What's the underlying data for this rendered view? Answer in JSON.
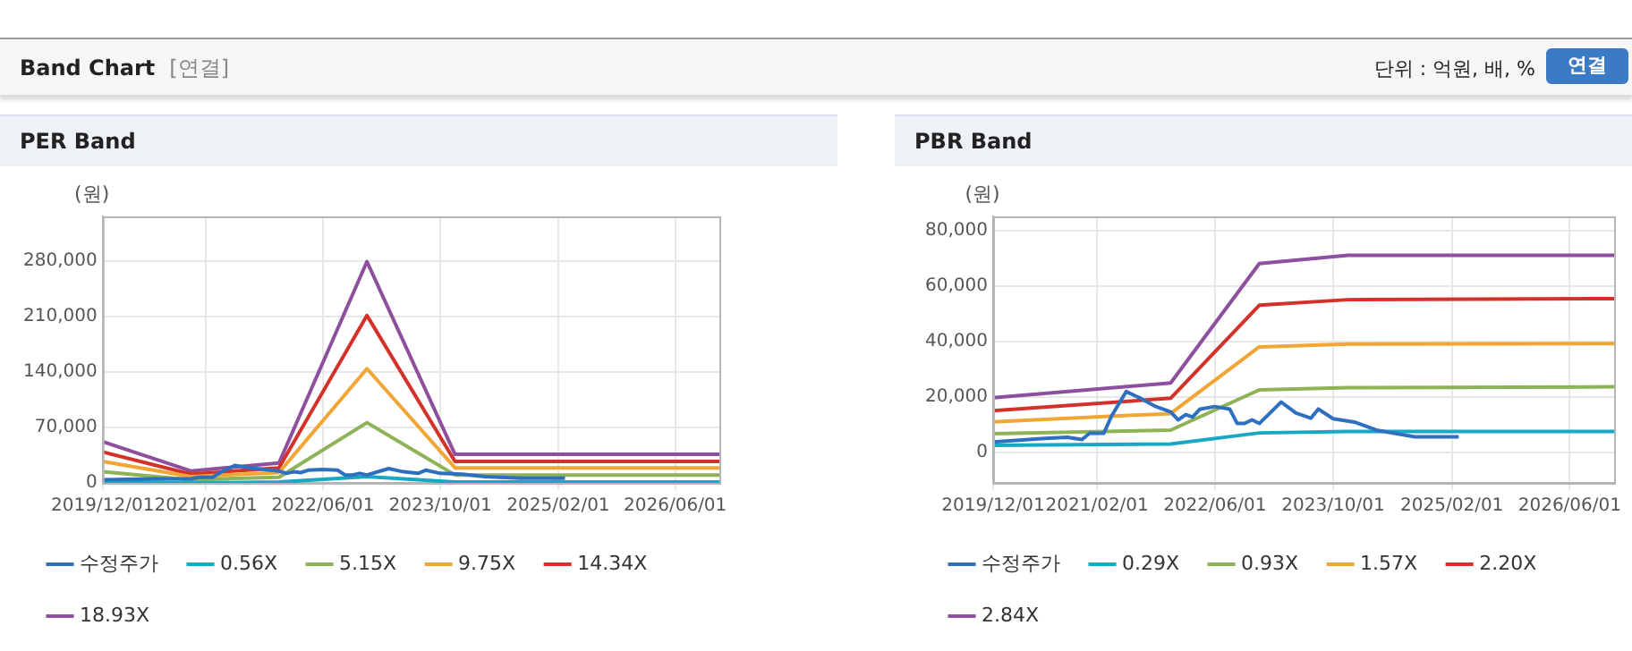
{
  "chart_data": [
    {
      "type": "other",
      "title": "Band Chart",
      "annotations": [
        "[연결]",
        "단위 : 억원, 배, %",
        "연결"
      ]
    },
    {
      "type": "line",
      "title": "PER Band",
      "ylabel": "(원)",
      "grid": true,
      "legend": "bottom",
      "marker": "none",
      "line_style": "solid",
      "xlim": [
        "2019-12-01",
        "2026-12-01"
      ],
      "xticks": [
        {
          "value": "2019-12-01",
          "label": "2019/12/01"
        },
        {
          "value": "2021-02-01",
          "label": "2021/02/01"
        },
        {
          "value": "2022-06-01",
          "label": "2022/06/01"
        },
        {
          "value": "2023-10-01",
          "label": "2023/10/01"
        },
        {
          "value": "2025-02-01",
          "label": "2025/02/01"
        },
        {
          "value": "2026-06-01",
          "label": "2026/06/01"
        }
      ],
      "ylim": [
        0,
        336000
      ],
      "yticks": [
        0,
        {
          "value": 70000,
          "label": "70,000"
        },
        {
          "value": 140000,
          "label": "140,000"
        },
        {
          "value": 210000,
          "label": "210,000"
        },
        {
          "value": 280000,
          "label": "280,000"
        }
      ],
      "series": [
        {
          "name": "수정주가",
          "color": "#2f6fbf",
          "x": [
            "2019-12",
            "2020-07",
            "2020-10",
            "2020-12",
            "2021-01",
            "2021-03",
            "2021-04",
            "2021-06",
            "2021-08",
            "2021-10",
            "2021-12",
            "2022-01",
            "2022-02",
            "2022-03",
            "2022-04",
            "2022-06",
            "2022-08",
            "2022-09",
            "2022-10",
            "2022-11",
            "2022-12",
            "2023-03",
            "2023-05",
            "2023-07",
            "2023-08",
            "2023-10",
            "2024-01",
            "2024-04",
            "2024-09",
            "2025-03"
          ],
          "values": [
            4000,
            5000,
            5000,
            5000,
            7000,
            7000,
            13000,
            22000,
            19000,
            17000,
            15000,
            12000,
            14000,
            13000,
            16000,
            17000,
            16000,
            10000,
            10000,
            12000,
            10000,
            18000,
            14000,
            12000,
            16000,
            12000,
            11000,
            8000,
            6000,
            6000
          ]
        },
        {
          "name": "0.56X",
          "color": "#17a9c4",
          "x": [
            "2019-12",
            "2020-12",
            "2021-12",
            "2022-12",
            "2023-12",
            "2026-12"
          ],
          "values": [
            2000,
            0,
            1000,
            8000,
            1000,
            1000
          ]
        },
        {
          "name": "5.15X",
          "color": "#8db356",
          "x": [
            "2019-12",
            "2020-12",
            "2021-12",
            "2022-12",
            "2023-12",
            "2026-12"
          ],
          "values": [
            14000,
            4000,
            7000,
            76000,
            10000,
            10000
          ]
        },
        {
          "name": "9.75X",
          "color": "#f0a535",
          "x": [
            "2019-12",
            "2020-12",
            "2021-12",
            "2022-12",
            "2023-12",
            "2026-12"
          ],
          "values": [
            27000,
            8000,
            13000,
            144000,
            19000,
            19000
          ]
        },
        {
          "name": "14.34X",
          "color": "#d3322b",
          "x": [
            "2019-12",
            "2020-12",
            "2021-12",
            "2022-12",
            "2023-12",
            "2026-12"
          ],
          "values": [
            39000,
            11000,
            19000,
            211000,
            27000,
            27000
          ]
        },
        {
          "name": "18.93X",
          "color": "#8e4f9e",
          "x": [
            "2019-12",
            "2020-12",
            "2021-12",
            "2022-12",
            "2023-12",
            "2026-12"
          ],
          "values": [
            52000,
            15000,
            25000,
            279000,
            36000,
            36000
          ]
        }
      ]
    },
    {
      "type": "line",
      "title": "PBR Band",
      "ylabel": "(원)",
      "grid": true,
      "legend": "bottom",
      "marker": "none",
      "line_style": "solid",
      "xlim": [
        "2019-12-01",
        "2026-12-01"
      ],
      "xticks": [
        {
          "value": "2019-12-01",
          "label": "2019/12/01"
        },
        {
          "value": "2021-02-01",
          "label": "2021/02/01"
        },
        {
          "value": "2022-06-01",
          "label": "2022/06/01"
        },
        {
          "value": "2023-10-01",
          "label": "2023/10/01"
        },
        {
          "value": "2025-02-01",
          "label": "2025/02/01"
        },
        {
          "value": "2026-06-01",
          "label": "2026/06/01"
        }
      ],
      "ylim": [
        -11000,
        85000
      ],
      "yticks": [
        0,
        {
          "value": 20000,
          "label": "20,000"
        },
        {
          "value": 40000,
          "label": "40,000"
        },
        {
          "value": 60000,
          "label": "60,000"
        },
        {
          "value": 80000,
          "label": "80,000"
        }
      ],
      "series": [
        {
          "name": "수정주가",
          "color": "#2f6fbf",
          "x": [
            "2019-12",
            "2020-07",
            "2020-10",
            "2020-12",
            "2021-01",
            "2021-03",
            "2021-04",
            "2021-06",
            "2021-08",
            "2021-10",
            "2021-12",
            "2022-01",
            "2022-02",
            "2022-03",
            "2022-04",
            "2022-06",
            "2022-08",
            "2022-09",
            "2022-10",
            "2022-11",
            "2022-12",
            "2023-03",
            "2023-05",
            "2023-07",
            "2023-08",
            "2023-10",
            "2024-01",
            "2024-04",
            "2024-09",
            "2025-03"
          ],
          "values": [
            3700,
            5000,
            5400,
            4600,
            6900,
            6900,
            13000,
            21900,
            19400,
            16500,
            14600,
            11700,
            13600,
            12700,
            15600,
            16500,
            15600,
            10400,
            10400,
            11700,
            10400,
            18100,
            14200,
            12300,
            15600,
            12100,
            10800,
            7900,
            5600,
            5600
          ]
        },
        {
          "name": "0.29X",
          "color": "#17a9c4",
          "x": [
            "2019-12",
            "2021-12",
            "2022-12",
            "2023-12",
            "2026-12"
          ],
          "values": [
            2500,
            3000,
            7000,
            7500,
            7500
          ]
        },
        {
          "name": "0.93X",
          "color": "#8db356",
          "x": [
            "2019-12",
            "2021-12",
            "2022-12",
            "2023-12",
            "2026-12"
          ],
          "values": [
            6700,
            8000,
            22500,
            23300,
            23600
          ]
        },
        {
          "name": "1.57X",
          "color": "#f0a535",
          "x": [
            "2019-12",
            "2021-12",
            "2022-12",
            "2023-12",
            "2026-12"
          ],
          "values": [
            11000,
            14000,
            38000,
            39000,
            39200
          ]
        },
        {
          "name": "2.20X",
          "color": "#d3322b",
          "x": [
            "2019-12",
            "2021-12",
            "2022-12",
            "2023-12",
            "2026-12"
          ],
          "values": [
            15000,
            19500,
            53000,
            55000,
            55400
          ]
        },
        {
          "name": "2.84X",
          "color": "#8e4f9e",
          "x": [
            "2019-12",
            "2021-12",
            "2022-12",
            "2023-12",
            "2026-12"
          ],
          "values": [
            19700,
            25000,
            68000,
            71000,
            71000
          ]
        }
      ]
    }
  ]
}
